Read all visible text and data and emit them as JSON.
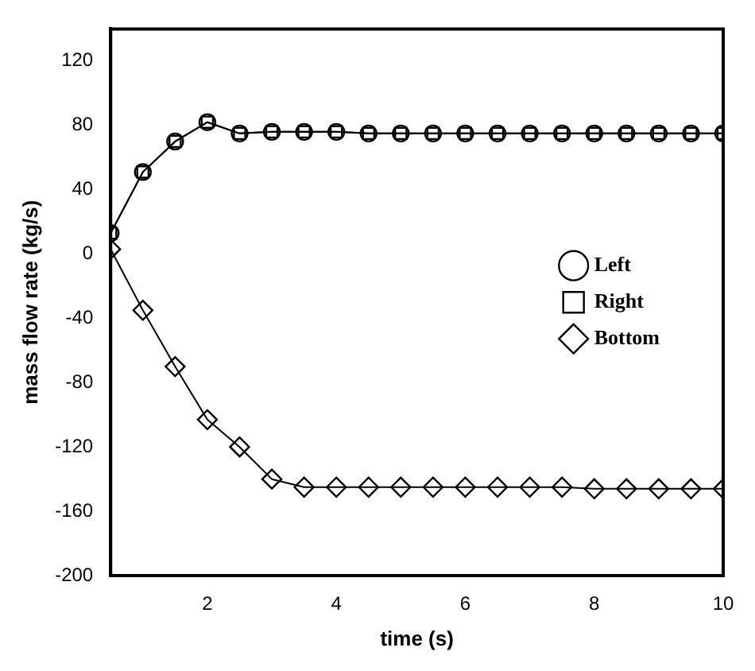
{
  "chart_data": {
    "type": "line",
    "xlabel": "time (s)",
    "ylabel": "mass flow rate (kg/s)",
    "x": [
      0.5,
      1,
      1.5,
      2,
      2.5,
      3,
      3.5,
      4,
      4.5,
      5,
      5.5,
      6,
      6.5,
      7,
      7.5,
      8,
      8.5,
      9,
      9.5,
      10
    ],
    "series": [
      {
        "name": "Left",
        "color": "#000000",
        "marker": "circle",
        "values": [
          13,
          51,
          70,
          82,
          75,
          76,
          76,
          76,
          75,
          75,
          75,
          75,
          75,
          75,
          75,
          75,
          75,
          75,
          75,
          75
        ]
      },
      {
        "name": "Right",
        "color": "#000000",
        "marker": "square",
        "values": [
          13,
          51,
          70,
          82,
          75,
          76,
          76,
          76,
          75,
          75,
          75,
          75,
          75,
          75,
          75,
          75,
          75,
          75,
          75,
          75
        ]
      },
      {
        "name": "Bottom",
        "color": "#000000",
        "marker": "diamond",
        "values": [
          3,
          -35,
          -70,
          -103,
          -120,
          -140,
          -145,
          -145,
          -145,
          -145,
          -145,
          -145,
          -145,
          -145,
          -145,
          -146,
          -146,
          -146,
          -146,
          -146
        ]
      }
    ],
    "xlim": [
      0.5,
      10
    ],
    "xticks": [
      2,
      4,
      6,
      8,
      10
    ],
    "ylim": [
      -200,
      140
    ],
    "yticks": [
      -200,
      -160,
      -120,
      -80,
      -40,
      0,
      40,
      80,
      120
    ],
    "grid": false,
    "legend": "right"
  }
}
